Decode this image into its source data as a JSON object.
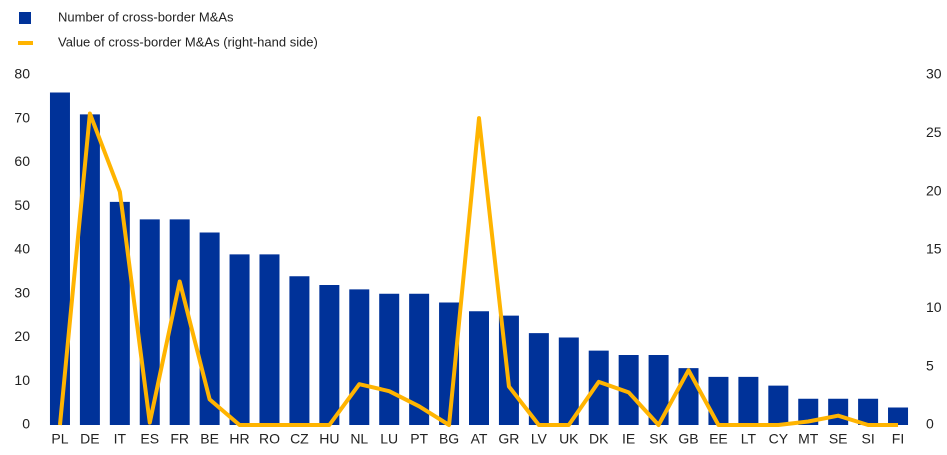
{
  "chart_data": {
    "type": "bar",
    "categories": [
      "PL",
      "DE",
      "IT",
      "ES",
      "FR",
      "BE",
      "HR",
      "RO",
      "CZ",
      "HU",
      "NL",
      "LU",
      "PT",
      "BG",
      "AT",
      "GR",
      "LV",
      "UK",
      "DK",
      "IE",
      "SK",
      "GB",
      "EE",
      "LT",
      "CY",
      "MT",
      "SE",
      "SI",
      "FI"
    ],
    "series": [
      {
        "name": "Number of cross-border M&As",
        "type": "bar",
        "color": "#003299",
        "values": [
          76,
          71,
          51,
          47,
          47,
          44,
          39,
          39,
          34,
          32,
          31,
          30,
          30,
          28,
          26,
          25,
          21,
          20,
          17,
          16,
          16,
          13,
          11,
          11,
          9,
          6,
          6,
          6,
          4
        ]
      },
      {
        "name": "Value of cross-border M&As (right-hand side)",
        "type": "line",
        "axis": "y2",
        "color": "#FFB400",
        "values": [
          0,
          26.7,
          20,
          0.2,
          12.3,
          2.2,
          0,
          0,
          0,
          0,
          3.5,
          2.9,
          1.6,
          0,
          26.3,
          3.3,
          0,
          0,
          3.7,
          2.8,
          0,
          4.7,
          0,
          0,
          0,
          0.3,
          0.8,
          0,
          0
        ]
      }
    ],
    "ylim": [
      0,
      80
    ],
    "yticks": [
      0,
      10,
      20,
      30,
      40,
      50,
      60,
      70,
      80
    ],
    "y2lim": [
      0,
      30
    ],
    "y2ticks": [
      0,
      5,
      10,
      15,
      20,
      25,
      30
    ]
  }
}
